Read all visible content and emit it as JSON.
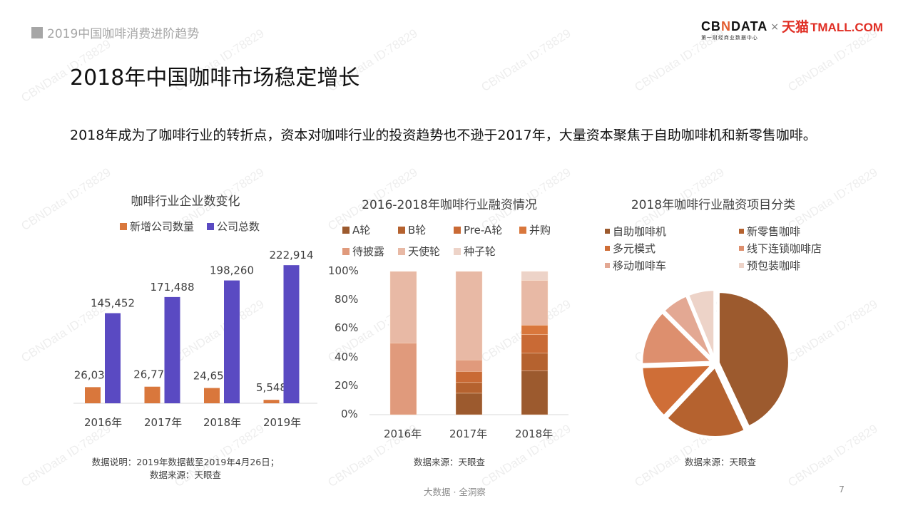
{
  "header": {
    "section_label": "2019中国咖啡消费进阶趋势",
    "logo": {
      "cbn_prefix": "CB",
      "cbn_n": "N",
      "cbn_suffix": "DATA",
      "cbn_sub": "第一财经商业数据中心",
      "times": "×",
      "tmall_cn": "天猫",
      "tmall_en": "TMALL.COM"
    }
  },
  "page": {
    "title": "2018年中国咖啡市场稳定增长",
    "subtitle": "2018年成为了咖啡行业的转折点，资本对咖啡行业的投资趋势也不逊于2017年，大量资本聚焦于自助咖啡机和新零售咖啡。"
  },
  "watermark_text": "CBNData ID:78829",
  "chart1": {
    "note_line1": "数据说明：2019年数据截至2019年4月26日；",
    "note_line2": "数据来源：天眼查"
  },
  "chart2": {
    "note": "数据来源：天眼查"
  },
  "chart3": {
    "note": "数据来源：天眼查"
  },
  "footer": {
    "slogan": "大数据 · 全洞察",
    "page_number": "7"
  },
  "colors": {
    "new_companies": "#D9773C",
    "total_companies": "#5A4AC2",
    "A": "#9C5A2E",
    "B": "#B5622F",
    "PreA": "#C96A35",
    "MA": "#D9773C",
    "undisclosed": "#E09A7C",
    "angel": "#E8B9A5",
    "seed": "#EDD3C8",
    "pie": [
      "#9C5A2E",
      "#B5622F",
      "#CF6E37",
      "#DD8F6E",
      "#E3A893",
      "#EDD3C8"
    ]
  },
  "chart_data": [
    {
      "type": "bar",
      "title": "咖啡行业企业数变化",
      "categories": [
        "2016年",
        "2017年",
        "2018年",
        "2019年"
      ],
      "series": [
        {
          "name": "新增公司数量",
          "values": [
            26036,
            26772,
            24654,
            5548
          ],
          "labels": [
            "26,036",
            "26,772",
            "24,654",
            "5,548"
          ]
        },
        {
          "name": "公司总数",
          "values": [
            145452,
            171488,
            198260,
            222914
          ],
          "labels": [
            "145,452",
            "171,488",
            "198,260",
            "222,914"
          ]
        }
      ],
      "legend_position": "top",
      "grid": false,
      "ylim": [
        0,
        230000
      ]
    },
    {
      "type": "bar",
      "stacked": true,
      "percent": true,
      "title": "2016-2018年咖啡行业融资情况",
      "categories": [
        "2016年",
        "2017年",
        "2018年"
      ],
      "yticks": [
        "0%",
        "20%",
        "40%",
        "60%",
        "80%",
        "100%"
      ],
      "ylim": [
        0,
        100
      ],
      "series": [
        {
          "name": "A轮",
          "values": [
            0,
            15,
            30.7
          ]
        },
        {
          "name": "B轮",
          "values": [
            0,
            7.5,
            12.4
          ]
        },
        {
          "name": "Pre-A轮",
          "values": [
            0,
            7.7,
            12.9
          ]
        },
        {
          "name": "并购",
          "values": [
            0,
            0,
            6.5
          ]
        },
        {
          "name": "待披露",
          "values": [
            50,
            8,
            0
          ]
        },
        {
          "name": "天使轮",
          "values": [
            50,
            61.8,
            31.2
          ]
        },
        {
          "name": "种子轮",
          "values": [
            0,
            0,
            6.3
          ]
        }
      ],
      "legend_position": "top"
    },
    {
      "type": "pie",
      "title": "2018年咖啡行业融资项目分类",
      "labels": [
        "自助咖啡机",
        "新零售咖啡",
        "多元模式",
        "线下连锁咖啡店",
        "移动咖啡车",
        "预包装咖啡"
      ],
      "values": [
        43,
        19,
        12.5,
        13,
        6.25,
        6.25
      ],
      "legend_position": "top"
    }
  ]
}
